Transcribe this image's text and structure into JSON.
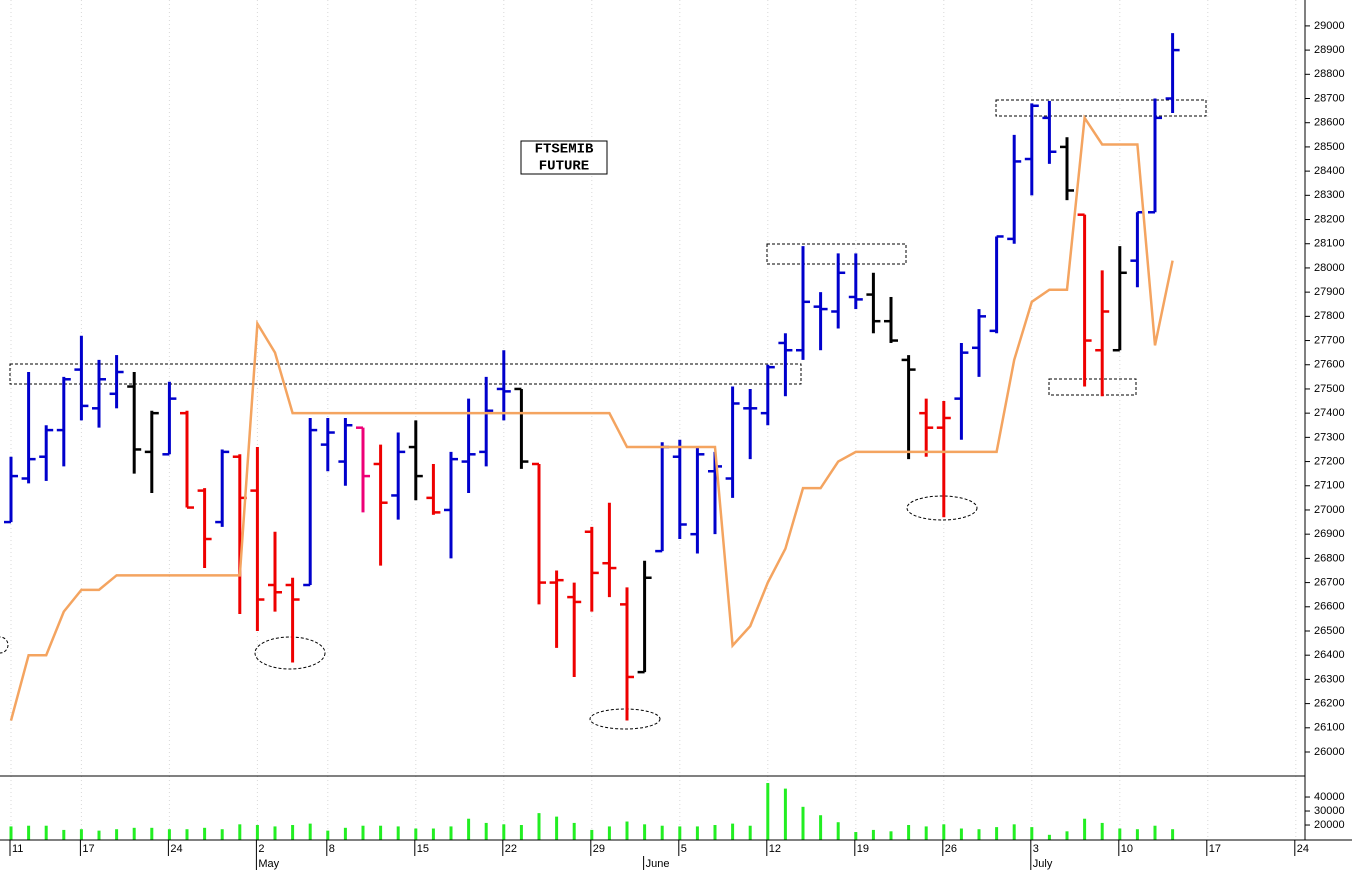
{
  "chart_data": [
    {
      "type": "ohlc",
      "title_lines": [
        "FTSEMIB",
        "FUTURE"
      ],
      "open": [
        26950,
        27130,
        27220,
        27330,
        27580,
        27420,
        27480,
        27510,
        27240,
        27230,
        27400,
        27080,
        26950,
        27220,
        27080,
        26690,
        26690,
        26690,
        27270,
        27200,
        27340,
        27190,
        27060,
        27260,
        27050,
        27000,
        27200,
        27240,
        27500,
        27500,
        27190,
        26700,
        26640,
        26910,
        26780,
        26610,
        26330,
        26830,
        27220,
        26900,
        27160,
        27130,
        27420,
        27400,
        27690,
        27660,
        27840,
        27820,
        27880,
        27890,
        27780,
        27620,
        27400,
        27340,
        27460,
        27670,
        27740,
        28120,
        28450,
        28620,
        28500,
        28220,
        27660,
        27660,
        28030,
        28230,
        28700,
        null,
        null,
        null,
        null,
        null,
        null,
        null
      ],
      "high": [
        27220,
        27570,
        27350,
        27550,
        27720,
        27620,
        27640,
        27570,
        27410,
        27530,
        27410,
        27090,
        27250,
        27230,
        27260,
        26910,
        26720,
        27380,
        27380,
        27380,
        27340,
        27270,
        27320,
        27370,
        27190,
        27240,
        27460,
        27550,
        27660,
        27500,
        27190,
        26750,
        26700,
        26930,
        27030,
        26680,
        26790,
        27280,
        27290,
        27260,
        27240,
        27510,
        27500,
        27600,
        27730,
        28090,
        27900,
        28060,
        28060,
        27980,
        27880,
        27640,
        27460,
        27450,
        27690,
        27830,
        28130,
        28550,
        28680,
        28690,
        28540,
        28220,
        27990,
        28090,
        28230,
        28700,
        28970,
        null,
        null,
        null,
        null,
        null,
        null,
        null
      ],
      "low": [
        26950,
        27110,
        27120,
        27180,
        27370,
        27340,
        27420,
        27150,
        27070,
        27230,
        27010,
        26760,
        26930,
        26570,
        26500,
        26580,
        26370,
        26690,
        27160,
        27100,
        26990,
        26770,
        26960,
        27040,
        26980,
        26800,
        27070,
        27180,
        27370,
        27170,
        26610,
        26430,
        26310,
        26580,
        26640,
        26130,
        26330,
        26830,
        26880,
        26820,
        26900,
        27050,
        27210,
        27350,
        27470,
        27620,
        27660,
        27750,
        27830,
        27730,
        27690,
        27210,
        27220,
        26970,
        27290,
        27550,
        27730,
        28100,
        28300,
        28430,
        28280,
        27510,
        27470,
        27660,
        27920,
        28230,
        28640,
        null,
        null,
        null,
        null,
        null,
        null,
        null
      ],
      "close": [
        27140,
        27210,
        27330,
        27540,
        27430,
        27540,
        27570,
        27250,
        27400,
        27460,
        27010,
        26880,
        27240,
        27050,
        26630,
        26660,
        26630,
        27330,
        27320,
        27350,
        27140,
        27030,
        27240,
        27140,
        26990,
        27210,
        27230,
        27410,
        27490,
        27200,
        26700,
        26710,
        26620,
        26740,
        26760,
        26310,
        26720,
        27260,
        26940,
        27230,
        27180,
        27440,
        27420,
        27590,
        27660,
        27860,
        27830,
        27980,
        27870,
        27780,
        27700,
        27580,
        27340,
        27380,
        27650,
        27800,
        28130,
        28440,
        28670,
        28480,
        28320,
        27700,
        27820,
        27980,
        28230,
        28620,
        28900,
        null,
        null,
        null,
        null,
        null,
        null,
        null
      ],
      "bar_colors": [
        "#0000cc",
        "#0000cc",
        "#0000cc",
        "#0000cc",
        "#0000cc",
        "#0000cc",
        "#0000cc",
        "#000000",
        "#000000",
        "#0000cc",
        "#ee0000",
        "#ee0000",
        "#0000cc",
        "#ee0000",
        "#ee0000",
        "#ee0000",
        "#ee0000",
        "#0000cc",
        "#0000cc",
        "#0000cc",
        "#ee0077",
        "#ee0000",
        "#0000cc",
        "#000000",
        "#ee0000",
        "#0000cc",
        "#0000cc",
        "#0000cc",
        "#0000cc",
        "#000000",
        "#ee0000",
        "#ee0000",
        "#ee0000",
        "#ee0000",
        "#ee0000",
        "#ee0000",
        "#000000",
        "#0000cc",
        "#0000cc",
        "#0000cc",
        "#0000cc",
        "#0000cc",
        "#0000cc",
        "#0000cc",
        "#0000cc",
        "#0000cc",
        "#0000cc",
        "#0000cc",
        "#0000cc",
        "#000000",
        "#000000",
        "#000000",
        "#ee0000",
        "#ee0000",
        "#0000cc",
        "#0000cc",
        "#0000cc",
        "#0000cc",
        "#0000cc",
        "#0000cc",
        "#000000",
        "#ee0000",
        "#ee0000",
        "#000000",
        "#0000cc",
        "#0000cc",
        "#0000cc",
        null,
        null,
        null,
        null,
        null,
        null,
        null
      ],
      "trend": {
        "color": "#f4a460",
        "values": [
          26130,
          26400,
          26400,
          26580,
          26670,
          26670,
          26730,
          26730,
          26730,
          26730,
          26730,
          26730,
          26730,
          26730,
          27770,
          27650,
          27400,
          27400,
          27400,
          27400,
          27400,
          27400,
          27400,
          27400,
          27400,
          27400,
          27400,
          27400,
          27400,
          27400,
          27400,
          27400,
          27400,
          27400,
          27400,
          27260,
          27260,
          27260,
          27260,
          27260,
          27260,
          26440,
          26520,
          26700,
          26840,
          27090,
          27090,
          27200,
          27240,
          27240,
          27240,
          27240,
          27240,
          27240,
          27240,
          27240,
          27240,
          27620,
          27860,
          27910,
          27910,
          28620,
          28510,
          28510,
          28510,
          27680,
          28030,
          null,
          null,
          null,
          null,
          null,
          null,
          null
        ]
      },
      "ylim": [
        25905,
        29107
      ],
      "yticks": [
        26000,
        26100,
        26200,
        26300,
        26400,
        26500,
        26600,
        26700,
        26800,
        26900,
        27000,
        27100,
        27200,
        27300,
        27400,
        27500,
        27600,
        27700,
        27800,
        27900,
        28000,
        28100,
        28200,
        28300,
        28400,
        28500,
        28600,
        28700,
        28800,
        28900,
        29000
      ]
    },
    {
      "type": "bar",
      "categories": [
        "11",
        null,
        null,
        null,
        "17",
        null,
        null,
        null,
        null,
        "24",
        null,
        null,
        null,
        null,
        "2",
        null,
        null,
        null,
        "8",
        null,
        null,
        null,
        null,
        "15",
        null,
        null,
        null,
        null,
        "22",
        null,
        null,
        null,
        null,
        "29",
        null,
        null,
        null,
        null,
        "5",
        null,
        null,
        null,
        null,
        "12",
        null,
        null,
        null,
        null,
        "19",
        null,
        null,
        null,
        null,
        "26",
        null,
        null,
        null,
        null,
        "3",
        null,
        null,
        null,
        null,
        "10",
        null,
        null,
        null,
        null,
        "17",
        null,
        null,
        null,
        null,
        "24"
      ],
      "months": [
        null,
        null,
        null,
        null,
        null,
        null,
        null,
        null,
        null,
        null,
        null,
        null,
        null,
        null,
        "May",
        null,
        null,
        null,
        null,
        null,
        null,
        null,
        null,
        null,
        null,
        null,
        null,
        null,
        null,
        null,
        null,
        null,
        null,
        null,
        null,
        null,
        "June",
        null,
        null,
        null,
        null,
        null,
        null,
        null,
        null,
        null,
        null,
        null,
        null,
        null,
        null,
        null,
        null,
        null,
        null,
        null,
        null,
        null,
        "July",
        null,
        null,
        null,
        null,
        null,
        null,
        null,
        null,
        null,
        null,
        null,
        null,
        null,
        null,
        null
      ],
      "values": [
        19000,
        19500,
        19500,
        16500,
        17000,
        16000,
        17000,
        18000,
        18000,
        17000,
        17000,
        18000,
        17000,
        20500,
        20000,
        19000,
        20000,
        21000,
        16000,
        18000,
        19500,
        19500,
        19000,
        17500,
        17500,
        19000,
        24500,
        21500,
        20500,
        20000,
        28500,
        26000,
        21500,
        16500,
        19000,
        22500,
        20500,
        19500,
        19000,
        19000,
        20000,
        21000,
        19500,
        50000,
        46000,
        33000,
        27000,
        22000,
        15000,
        16500,
        15500,
        20000,
        19000,
        20500,
        17500,
        17000,
        18500,
        20500,
        18500,
        13000,
        15500,
        24500,
        21500,
        17500,
        17000,
        19500,
        17000,
        null,
        null,
        null,
        null,
        null,
        null,
        null
      ],
      "color": "#22ee22",
      "ylim": [
        9300,
        54300
      ],
      "yticks": [
        20000,
        30000,
        40000
      ]
    }
  ]
}
